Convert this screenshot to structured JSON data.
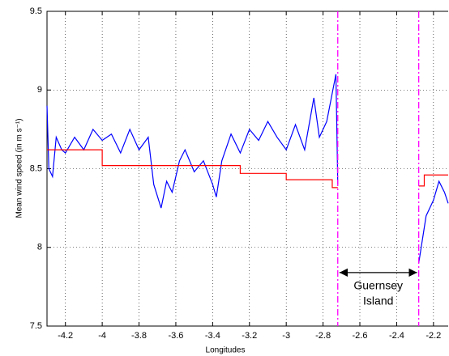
{
  "chart_data": {
    "type": "line",
    "xlabel": "Longitudes",
    "ylabel": "Mean wind speed (in m s⁻¹)",
    "xlim": [
      -4.3,
      -2.12
    ],
    "ylim": [
      7.5,
      9.5
    ],
    "xticks": [
      -4.2,
      -4,
      -3.8,
      -3.6,
      -3.4,
      -3.2,
      -3,
      -2.8,
      -2.6,
      -2.4,
      -2.2
    ],
    "yticks": [
      7.5,
      8,
      8.5,
      9,
      9.5
    ],
    "grid": true,
    "series": [
      {
        "color": "#0000ff",
        "x": [
          -4.3,
          -4.29,
          -4.27,
          -4.25,
          -4.22,
          -4.2,
          -4.15,
          -4.1,
          -4.05,
          -4.0,
          -3.95,
          -3.9,
          -3.85,
          -3.8,
          -3.75,
          -3.72,
          -3.68,
          -3.65,
          -3.62,
          -3.58,
          -3.55,
          -3.5,
          -3.45,
          -3.4,
          -3.38,
          -3.35,
          -3.3,
          -3.25,
          -3.2,
          -3.15,
          -3.1,
          -3.05,
          -3.0,
          -2.95,
          -2.9,
          -2.85,
          -2.82,
          -2.78,
          -2.73,
          -2.72,
          -2.5,
          -2.28,
          -2.26,
          -2.24,
          -2.2,
          -2.17,
          -2.14,
          -2.12
        ],
        "values": [
          8.9,
          8.5,
          8.45,
          8.7,
          8.62,
          8.6,
          8.7,
          8.62,
          8.75,
          8.68,
          8.72,
          8.6,
          8.75,
          8.62,
          8.7,
          8.4,
          8.25,
          8.42,
          8.35,
          8.55,
          8.62,
          8.48,
          8.55,
          8.4,
          8.32,
          8.55,
          8.72,
          8.6,
          8.75,
          8.68,
          8.8,
          8.7,
          8.62,
          8.78,
          8.62,
          8.95,
          8.7,
          8.8,
          9.1,
          8.4,
          null,
          7.9,
          8.05,
          8.2,
          8.3,
          8.42,
          8.35,
          8.28
        ]
      },
      {
        "color": "#ff0000",
        "x": [
          -4.3,
          -4.0,
          -4.0,
          -3.25,
          -3.25,
          -3.0,
          -3.0,
          -2.75,
          -2.75,
          -2.72,
          -2.5,
          -2.28,
          -2.25,
          -2.25,
          -2.12
        ],
        "values": [
          8.62,
          8.62,
          8.52,
          8.52,
          8.47,
          8.47,
          8.43,
          8.43,
          8.38,
          8.38,
          null,
          8.39,
          8.39,
          8.46,
          8.46
        ]
      }
    ],
    "annotations": [
      {
        "x": -2.72,
        "color": "#ff00ff"
      },
      {
        "x": -2.28,
        "color": "#ff00ff"
      }
    ],
    "span_label": {
      "x1": -2.72,
      "x2": -2.28,
      "y": 7.84,
      "lines": [
        "Guernsey",
        "Island"
      ]
    }
  }
}
